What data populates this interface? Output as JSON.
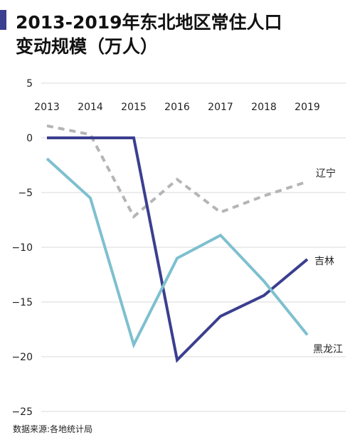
{
  "title": {
    "line1": "2013-2019年东北地区常住人口",
    "line2": "变动规模（万人）"
  },
  "source": "数据来源:各地统计局",
  "colors": {
    "accent": "#3b3f8f",
    "background": "#ffffff",
    "grid": "#d9d9d9",
    "text": "#222222"
  },
  "chart_data": {
    "type": "line",
    "title": "2013-2019年东北地区常住人口变动规模（万人）",
    "xlabel": "",
    "ylabel": "",
    "x": [
      "2013",
      "2014",
      "2015",
      "2016",
      "2017",
      "2018",
      "2019"
    ],
    "ylim": [
      -25,
      5
    ],
    "yticks": [
      5,
      0,
      -5,
      -10,
      -15,
      -20,
      -25
    ],
    "x_axis_position": "top",
    "grid": "horizontal",
    "legend": "inline labels at line ends (right)",
    "series": [
      {
        "name": "辽宁",
        "values": [
          1.1,
          0.3,
          -7.2,
          -3.8,
          -6.8,
          -5.3,
          -4.0
        ],
        "color": "#b5b5b5",
        "style": "dashed"
      },
      {
        "name": "吉林",
        "values": [
          0.0,
          0.0,
          0.0,
          -20.3,
          -16.3,
          -14.4,
          -11.1
        ],
        "color": "#3b3f8f",
        "style": "solid"
      },
      {
        "name": "黑龙江",
        "values": [
          -1.9,
          -5.5,
          -18.9,
          -11.0,
          -8.9,
          -13.1,
          -18.0
        ],
        "color": "#7ec0cf",
        "style": "solid"
      }
    ]
  }
}
